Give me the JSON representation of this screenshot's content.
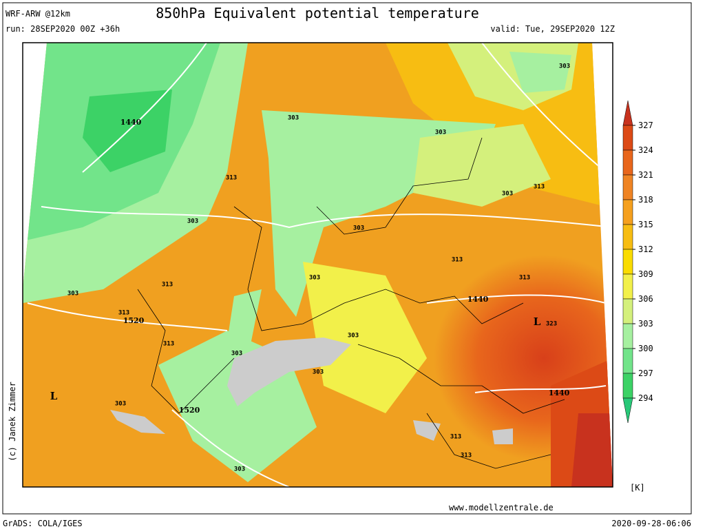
{
  "header": {
    "model": "WRF-ARW @12km",
    "title": "850hPa Equivalent potential temperature",
    "run": "run: 28SEP2020 00Z +36h",
    "valid": "valid: Tue, 29SEP2020 12Z"
  },
  "colorbar": {
    "ticks": [
      327,
      324,
      321,
      318,
      315,
      312,
      309,
      306,
      303,
      300,
      297,
      294
    ],
    "colors": [
      "#c8321e",
      "#dc4a16",
      "#e8661c",
      "#ef8424",
      "#f5a01e",
      "#f7bd12",
      "#fadc00",
      "#f2f04a",
      "#d4f07c",
      "#a6f0a0",
      "#72e48a",
      "#3cd266",
      "#28c878"
    ],
    "unit": "[K]"
  },
  "map": {
    "contour_labels": [
      "1440",
      "303",
      "303",
      "303",
      "313",
      "303",
      "303",
      "303",
      "313",
      "313",
      "303",
      "313",
      "313",
      "303",
      "313",
      "1520",
      "1440",
      "L",
      "323",
      "313",
      "303",
      "303",
      "303",
      "1440",
      "L",
      "303",
      "1520",
      "313",
      "313",
      "303"
    ]
  },
  "footer": {
    "credit": "(c) Janek Zimmer",
    "website": "www.modellzentrale.de",
    "software": "GrADS: COLA/IGES",
    "timestamp": "2020-09-28-06:06"
  }
}
